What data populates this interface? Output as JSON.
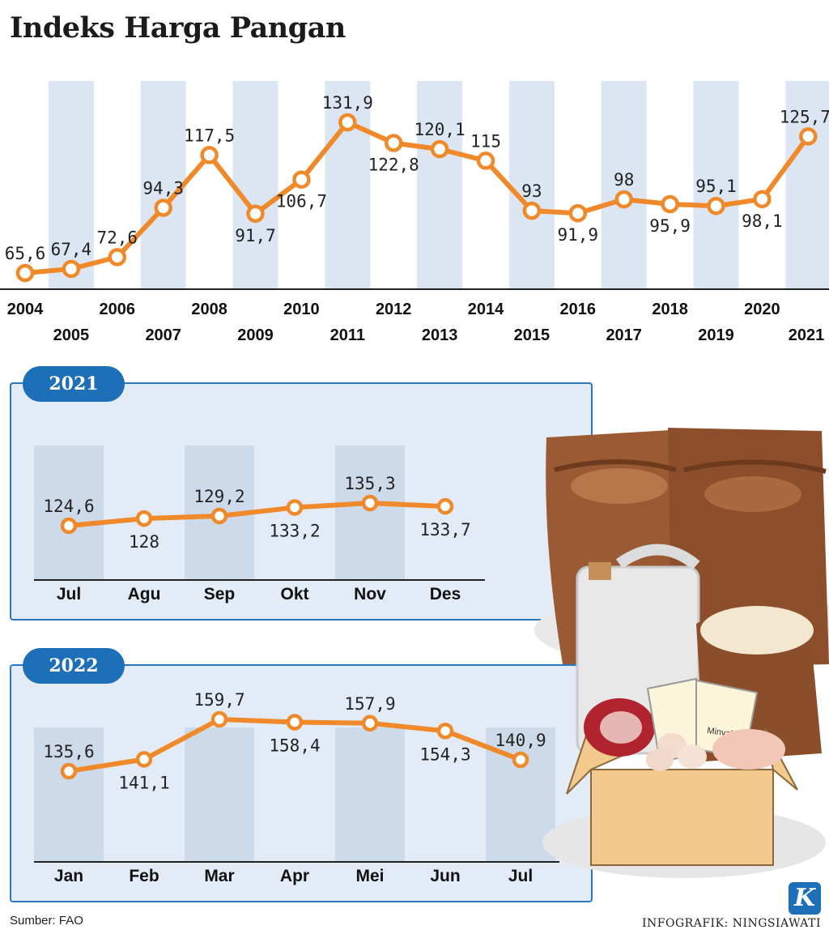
{
  "title": "Indeks Harga Pangan",
  "source": "Sumber: FAO",
  "credit": "INFOGRAFIK: NINGSIAWATI",
  "logo": "K",
  "colors": {
    "line": "#f0892a",
    "band": "#dbe6f2",
    "panel": "#e3ecf6",
    "badge": "#1d6fb7",
    "text": "#1b1b1b"
  },
  "illustration": {
    "icon": "groceries-illustration",
    "label": "Minyak"
  },
  "chart_data": [
    {
      "type": "line",
      "x": [
        "2004",
        "2005",
        "2006",
        "2007",
        "2008",
        "2009",
        "2010",
        "2011",
        "2012",
        "2013",
        "2014",
        "2015",
        "2016",
        "2017",
        "2018",
        "2019",
        "2020",
        "2021"
      ],
      "value_labels": [
        "65,6",
        "67,4",
        "72,6",
        "94,3",
        "117,5",
        "91,7",
        "106,7",
        "131,9",
        "122,8",
        "120,1",
        "115",
        "93",
        "91,9",
        "98",
        "95,9",
        "95,1",
        "98,1",
        "125,7"
      ],
      "values": [
        65.6,
        67.4,
        72.6,
        94.3,
        117.5,
        91.7,
        106.7,
        131.9,
        122.8,
        120.1,
        115,
        93,
        91.9,
        98,
        95.9,
        95.1,
        98.1,
        125.7
      ],
      "label_position": [
        "above",
        "above",
        "above",
        "above",
        "above",
        "below",
        "below",
        "above",
        "below",
        "above",
        "above",
        "above",
        "below",
        "above",
        "below",
        "above",
        "below",
        "above"
      ]
    },
    {
      "type": "line",
      "panel_label": "2021",
      "x": [
        "Jul",
        "Agu",
        "Sep",
        "Okt",
        "Nov",
        "Des"
      ],
      "value_labels": [
        "124,6",
        "128",
        "129,2",
        "133,2",
        "135,3",
        "133,7"
      ],
      "values": [
        124.6,
        128,
        129.2,
        133.2,
        135.3,
        133.7
      ],
      "label_position": [
        "above",
        "below",
        "above",
        "below",
        "above",
        "below"
      ]
    },
    {
      "type": "line",
      "panel_label": "2022",
      "x": [
        "Jan",
        "Feb",
        "Mar",
        "Apr",
        "Mei",
        "Jun",
        "Jul"
      ],
      "value_labels": [
        "135,6",
        "141,1",
        "159,7",
        "158,4",
        "157,9",
        "154,3",
        "140,9"
      ],
      "values": [
        135.6,
        141.1,
        159.7,
        158.4,
        157.9,
        154.3,
        140.9
      ],
      "label_position": [
        "above",
        "below",
        "above",
        "below",
        "above",
        "below",
        "above"
      ]
    }
  ]
}
